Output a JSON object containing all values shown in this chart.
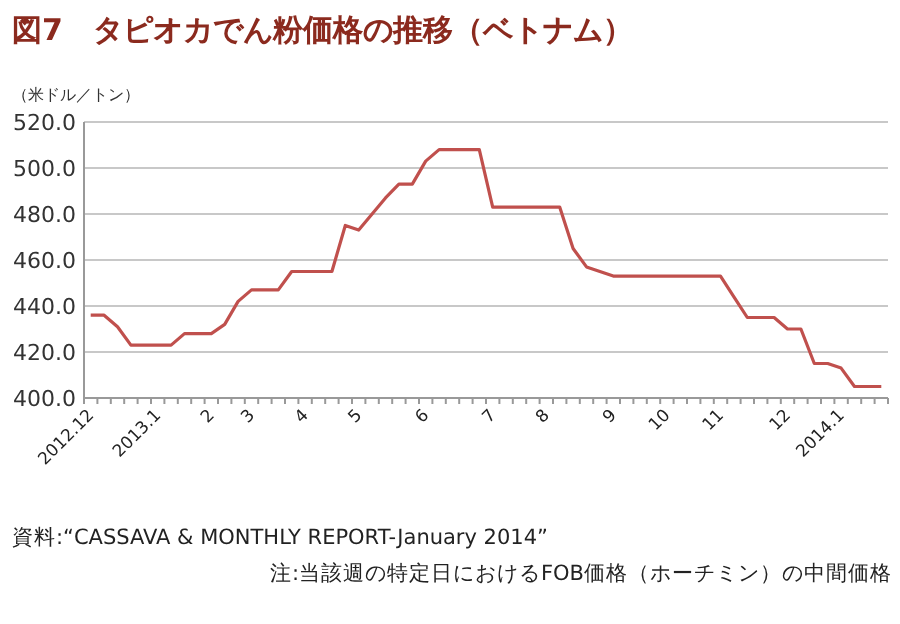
{
  "chart_data": {
    "type": "line",
    "title": "図7　タピオカでん粉価格の推移（ベトナム）",
    "ylabel": "（米ドル／トン）",
    "categories": [
      "2012.12",
      null,
      null,
      null,
      null,
      "2013.1",
      null,
      null,
      null,
      "2",
      null,
      null,
      "3",
      null,
      null,
      null,
      "4",
      null,
      null,
      null,
      "5",
      null,
      null,
      null,
      null,
      "6",
      null,
      null,
      null,
      null,
      "7",
      null,
      null,
      null,
      "8",
      null,
      null,
      null,
      null,
      "9",
      null,
      null,
      null,
      "10",
      null,
      null,
      null,
      "11",
      null,
      null,
      null,
      null,
      "12",
      null,
      null,
      null,
      "2014.1",
      null,
      null,
      null
    ],
    "series": [
      {
        "color": "#c0504d",
        "values": [
          436,
          436,
          431,
          423,
          423,
          423,
          423,
          428,
          428,
          428,
          432,
          442,
          447,
          447,
          447,
          455,
          455,
          455,
          455,
          475,
          473,
          480,
          487,
          493,
          493,
          503,
          508,
          508,
          508,
          508,
          483,
          483,
          483,
          483,
          483,
          483,
          465,
          457,
          455,
          453,
          453,
          453,
          453,
          453,
          453,
          453,
          453,
          453,
          444,
          435,
          435,
          435,
          430,
          430,
          415,
          415,
          413,
          405,
          405,
          405
        ]
      }
    ],
    "ylim": [
      400,
      520
    ],
    "yticks": [
      {
        "value": 400,
        "label": "400.0"
      },
      {
        "value": 420,
        "label": "420.0"
      },
      {
        "value": 440,
        "label": "440.0"
      },
      {
        "value": 460,
        "label": "460.0"
      },
      {
        "value": 480,
        "label": "480.0"
      },
      {
        "value": 500,
        "label": "500.0"
      },
      {
        "value": 520,
        "label": "520.0"
      }
    ],
    "grid": "y",
    "annotations": [
      "資料:“CASSAVA & MONTHLY REPORT-January 2014”",
      "注:当該週の特定日におけるFOB価格（ホーチミン）の中間価格"
    ]
  }
}
